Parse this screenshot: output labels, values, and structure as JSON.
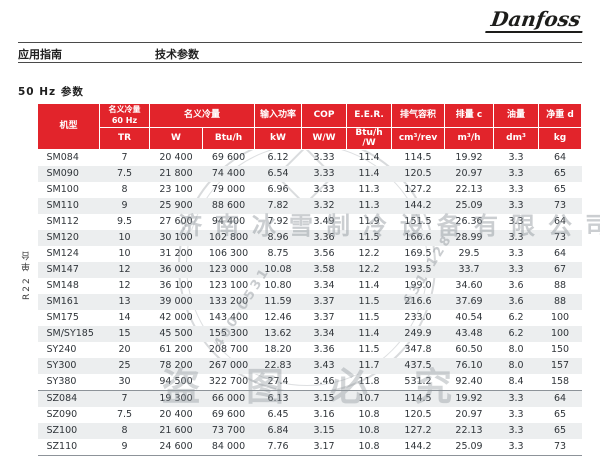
{
  "page": {
    "brand": "Danfoss",
    "breadcrumb_left": "应用指南",
    "breadcrumb_right": "技术参数",
    "section_title": "50 Hz 参数"
  },
  "colors": {
    "header_red": "#e2242b",
    "alt_row": "#eceeef"
  },
  "table": {
    "group_label": "R22 单台",
    "header": {
      "model": "机型",
      "nominal_60hz_line1": "名义冷量",
      "nominal_60hz_line2": "60 Hz",
      "nominal": "名义冷量",
      "input_power": "输入功率",
      "cop": "COP",
      "eer": "E.E.R.",
      "displacement_volume": "排气容积",
      "displacement": "排量 c",
      "oil_charge": "油量",
      "net_weight": "净重 d",
      "units": [
        "TR",
        "W",
        "Btu/h",
        "kW",
        "W/W",
        "Btu/h /W",
        "cm³/rev",
        "m³/h",
        "dm³",
        "kg"
      ]
    },
    "group_break_index": 15,
    "rows": [
      [
        "SM084",
        "7",
        "20 400",
        "69 600",
        "6.12",
        "3.33",
        "11.4",
        "114.5",
        "19.92",
        "3.3",
        "64"
      ],
      [
        "SM090",
        "7.5",
        "21 800",
        "74 400",
        "6.54",
        "3.33",
        "11.4",
        "120.5",
        "20.97",
        "3.3",
        "65"
      ],
      [
        "SM100",
        "8",
        "23 100",
        "79 000",
        "6.96",
        "3.33",
        "11.3",
        "127.2",
        "22.13",
        "3.3",
        "65"
      ],
      [
        "SM110",
        "9",
        "25 900",
        "88 600",
        "7.82",
        "3.32",
        "11.3",
        "144.2",
        "25.09",
        "3.3",
        "73"
      ],
      [
        "SM112",
        "9.5",
        "27 600",
        "94 400",
        "7.92",
        "3.49",
        "11.9",
        "151.5",
        "26.36",
        "3.3",
        "64"
      ],
      [
        "SM120",
        "10",
        "30 100",
        "102 800",
        "8.96",
        "3.36",
        "11.5",
        "166.6",
        "28.99",
        "3.3",
        "73"
      ],
      [
        "SM124",
        "10",
        "31 200",
        "106 300",
        "8.75",
        "3.56",
        "12.2",
        "169.5",
        "29.5",
        "3.3",
        "64"
      ],
      [
        "SM147",
        "12",
        "36 000",
        "123 000",
        "10.08",
        "3.58",
        "12.2",
        "193.5",
        "33.7",
        "3.3",
        "67"
      ],
      [
        "SM148",
        "12",
        "36 100",
        "123 100",
        "10.80",
        "3.34",
        "11.4",
        "199.0",
        "34.60",
        "3.6",
        "88"
      ],
      [
        "SM161",
        "13",
        "39 000",
        "133 200",
        "11.59",
        "3.37",
        "11.5",
        "216.6",
        "37.69",
        "3.6",
        "88"
      ],
      [
        "SM175",
        "14",
        "42 000",
        "143 400",
        "12.46",
        "3.37",
        "11.5",
        "233.0",
        "40.54",
        "6.2",
        "100"
      ],
      [
        "SM/SY185",
        "15",
        "45 500",
        "155 300",
        "13.62",
        "3.34",
        "11.4",
        "249.9",
        "43.48",
        "6.2",
        "100"
      ],
      [
        "SY240",
        "20",
        "61 200",
        "208 700",
        "18.20",
        "3.36",
        "11.5",
        "347.8",
        "60.50",
        "8.0",
        "150"
      ],
      [
        "SY300",
        "25",
        "78 200",
        "267 000",
        "22.83",
        "3.43",
        "11.7",
        "437.5",
        "76.10",
        "8.0",
        "157"
      ],
      [
        "SY380",
        "30",
        "94 500",
        "322 700",
        "27.4",
        "3.46",
        "11.8",
        "531.2",
        "92.40",
        "8.4",
        "158"
      ],
      [
        "SZ084",
        "7",
        "19 300",
        "66 000",
        "6.13",
        "3.15",
        "10.7",
        "114.5",
        "19.92",
        "3.3",
        "64"
      ],
      [
        "SZ090",
        "7.5",
        "20 400",
        "69 600",
        "6.45",
        "3.16",
        "10.8",
        "120.5",
        "20.97",
        "3.3",
        "65"
      ],
      [
        "SZ100",
        "8",
        "21 600",
        "73 700",
        "6.84",
        "3.15",
        "10.8",
        "127.2",
        "22.13",
        "3.3",
        "65"
      ],
      [
        "SZ110",
        "9",
        "24 600",
        "84 000",
        "7.76",
        "3.17",
        "10.8",
        "144.2",
        "25.09",
        "3.3",
        "73"
      ]
    ]
  },
  "watermark": {
    "company": "济南冰雪制冷设备有限公司",
    "notice": "盗图必究",
    "digits_left": "400-0531",
    "digits_right": "631-128"
  }
}
